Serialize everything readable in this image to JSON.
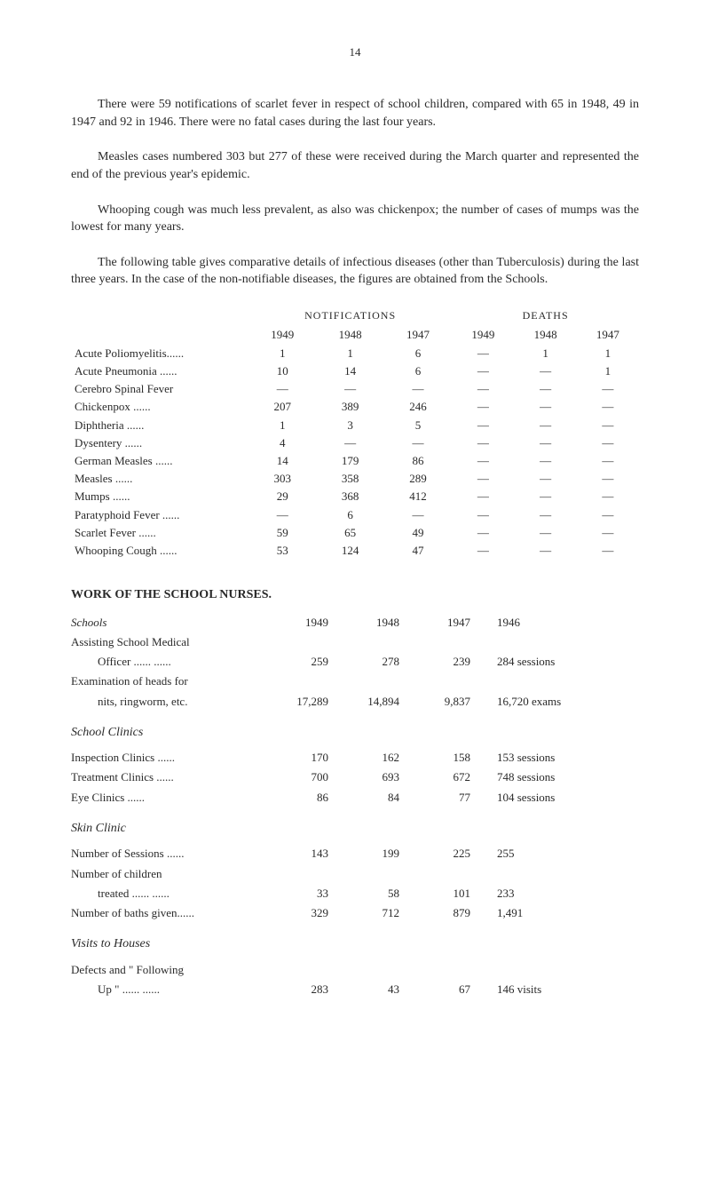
{
  "page_number": "14",
  "paragraphs": {
    "p1": "There were 59 notifications of scarlet fever in respect of school children, compared with 65 in 1948, 49 in 1947 and 92 in 1946. There were no fatal cases during the last four years.",
    "p2": "Measles cases numbered 303 but 277 of these were received during the March quarter and represented the end of the previous year's epidemic.",
    "p3": "Whooping cough was much less prevalent, as also was chickenpox; the number of cases of mumps was the lowest for many years.",
    "p4": "The following table gives comparative details of infectious diseases (other than Tuberculosis) during the last three years. In the case of the non-notifiable diseases, the figures are obtained from the Schools."
  },
  "table1": {
    "header_groups": {
      "notifications": "NOTIFICATIONS",
      "deaths": "DEATHS"
    },
    "years": {
      "y1949": "1949",
      "y1948": "1948",
      "y1947": "1947"
    },
    "rows": [
      {
        "label": "Acute Poliomyelitis......",
        "n49": "1",
        "n48": "1",
        "n47": "6",
        "d49": "—",
        "d48": "1",
        "d47": "1"
      },
      {
        "label": "Acute Pneumonia ......",
        "n49": "10",
        "n48": "14",
        "n47": "6",
        "d49": "—",
        "d48": "—",
        "d47": "1"
      },
      {
        "label": "Cerebro Spinal Fever",
        "n49": "—",
        "n48": "—",
        "n47": "—",
        "d49": "—",
        "d48": "—",
        "d47": "—"
      },
      {
        "label": "Chickenpox            ......",
        "n49": "207",
        "n48": "389",
        "n47": "246",
        "d49": "—",
        "d48": "—",
        "d47": "—"
      },
      {
        "label": "Diphtheria            ......",
        "n49": "1",
        "n48": "3",
        "n47": "5",
        "d49": "—",
        "d48": "—",
        "d47": "—"
      },
      {
        "label": "Dysentery             ......",
        "n49": "4",
        "n48": "—",
        "n47": "—",
        "d49": "—",
        "d48": "—",
        "d47": "—"
      },
      {
        "label": "German Measles  ......",
        "n49": "14",
        "n48": "179",
        "n47": "86",
        "d49": "—",
        "d48": "—",
        "d47": "—"
      },
      {
        "label": "Measles               ......",
        "n49": "303",
        "n48": "358",
        "n47": "289",
        "d49": "—",
        "d48": "—",
        "d47": "—"
      },
      {
        "label": "Mumps               ......",
        "n49": "29",
        "n48": "368",
        "n47": "412",
        "d49": "—",
        "d48": "—",
        "d47": "—"
      },
      {
        "label": "Paratyphoid Fever ......",
        "n49": "—",
        "n48": "6",
        "n47": "—",
        "d49": "—",
        "d48": "—",
        "d47": "—"
      },
      {
        "label": "Scarlet Fever         ......",
        "n49": "59",
        "n48": "65",
        "n47": "49",
        "d49": "—",
        "d48": "—",
        "d47": "—"
      },
      {
        "label": "Whooping Cough ......",
        "n49": "53",
        "n48": "124",
        "n47": "47",
        "d49": "—",
        "d48": "—",
        "d47": "—"
      }
    ]
  },
  "work_title": "WORK OF THE SCHOOL NURSES.",
  "schools": {
    "header": {
      "label": "Schools",
      "c1949": "1949",
      "c1948": "1948",
      "c1947": "1947",
      "c1946": "1946"
    },
    "assisting": {
      "label1": "Assisting School Medical",
      "label2": "Officer       ......  ......",
      "v49": "259",
      "v48": "278",
      "v47": "239",
      "note": "284 sessions"
    },
    "examination": {
      "label1": "Examination of heads for",
      "label2": "nits, ringworm, etc.",
      "v49": "17,289",
      "v48": "14,894",
      "v47": "9,837",
      "note": "16,720 exams"
    }
  },
  "school_clinics": {
    "title": "School Clinics",
    "rows": [
      {
        "label": "Inspection Clinics    ......",
        "v49": "170",
        "v48": "162",
        "v47": "158",
        "note": "153 sessions"
      },
      {
        "label": "Treatment Clinics    ......",
        "v49": "700",
        "v48": "693",
        "v47": "672",
        "note": "748 sessions"
      },
      {
        "label": "Eye Clinics            ......",
        "v49": "86",
        "v48": "84",
        "v47": "77",
        "note": "104 sessions"
      }
    ]
  },
  "skin_clinic": {
    "title": "Skin Clinic",
    "rows": [
      {
        "label": "Number of Sessions ......",
        "v49": "143",
        "v48": "199",
        "v47": "225",
        "note": "255"
      },
      {
        "label1": "Number of children",
        "label2": "treated       ......  ......",
        "v49": "33",
        "v48": "58",
        "v47": "101",
        "note": "233"
      },
      {
        "label": "Number of baths given......",
        "v49": "329",
        "v48": "712",
        "v47": "879",
        "note": "1,491"
      }
    ]
  },
  "visits": {
    "title": "Visits to Houses",
    "row": {
      "label1": "Defects and \" Following",
      "label2": "Up \"           ......  ......",
      "v49": "283",
      "v48": "43",
      "v47": "67",
      "note": "146 visits"
    }
  }
}
